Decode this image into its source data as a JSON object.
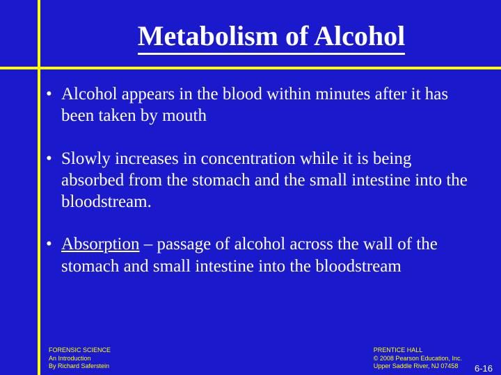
{
  "title": "Metabolism of Alcohol",
  "bullets": [
    {
      "text": "Alcohol appears in the blood within minutes after it has been taken by mouth"
    },
    {
      "text": "Slowly increases in concentration while it is being absorbed from the stomach and the small intestine into the bloodstream."
    },
    {
      "term": "Absorption",
      "text": " – passage of alcohol across the wall of the stomach and small intestine into the bloodstream"
    }
  ],
  "footer_left": {
    "l1": "FORENSIC SCIENCE",
    "l2": "An Introduction",
    "l3": "By Richard Saferstein"
  },
  "footer_right": {
    "l1": "PRENTICE HALL",
    "l2": "© 2008 Pearson Education, Inc.",
    "l3": "Upper Saddle River, NJ 07458"
  },
  "slide_number": "6-16",
  "colors": {
    "background": "#1a1acc",
    "rule": "#ffff00",
    "text": "#ffffff",
    "footer": "#ffff00"
  }
}
